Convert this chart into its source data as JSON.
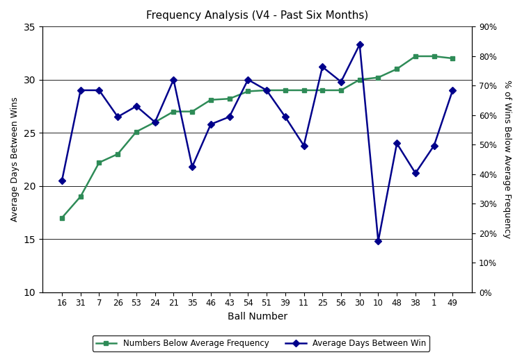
{
  "title": "Frequency Analysis (V4 - Past Six Months)",
  "xlabel": "Ball Number",
  "ylabel_left": "Average Days Between Wins",
  "ylabel_right": "% of Wins Below Average Frequency",
  "ball_numbers": [
    16,
    31,
    7,
    26,
    53,
    24,
    21,
    35,
    46,
    43,
    54,
    51,
    39,
    11,
    25,
    56,
    30,
    10,
    48,
    38,
    1,
    49
  ],
  "green_values": [
    17.0,
    19.0,
    22.2,
    23.0,
    25.1,
    26.0,
    27.0,
    27.0,
    28.1,
    28.2,
    28.9,
    29.0,
    29.0,
    29.0,
    29.0,
    29.0,
    30.0,
    30.2,
    31.0,
    32.2,
    32.2,
    32.0
  ],
  "blue_values": [
    20.5,
    29.0,
    29.0,
    26.5,
    27.5,
    26.0,
    30.0,
    21.8,
    25.8,
    26.5,
    30.0,
    29.0,
    26.5,
    23.8,
    31.2,
    29.8,
    33.3,
    14.8,
    24.0,
    21.2,
    23.8,
    29.0
  ],
  "ylim": [
    10,
    35
  ],
  "left_yticks": [
    10,
    15,
    20,
    25,
    30,
    35
  ],
  "right_ytick_labels": [
    "0%",
    "10%",
    "20%",
    "30%",
    "40%",
    "50%",
    "60%",
    "70%",
    "80%",
    "90%"
  ],
  "right_ytick_vals": [
    10,
    12.78,
    15.56,
    18.33,
    21.11,
    23.89,
    26.67,
    29.44,
    32.22,
    35.0
  ],
  "green_color": "#2E8B57",
  "blue_color": "#00008B",
  "background_color": "#ffffff",
  "grid_color": "#000000",
  "legend_labels": [
    "Numbers Below Average Frequency",
    "Average Days Between Win"
  ]
}
